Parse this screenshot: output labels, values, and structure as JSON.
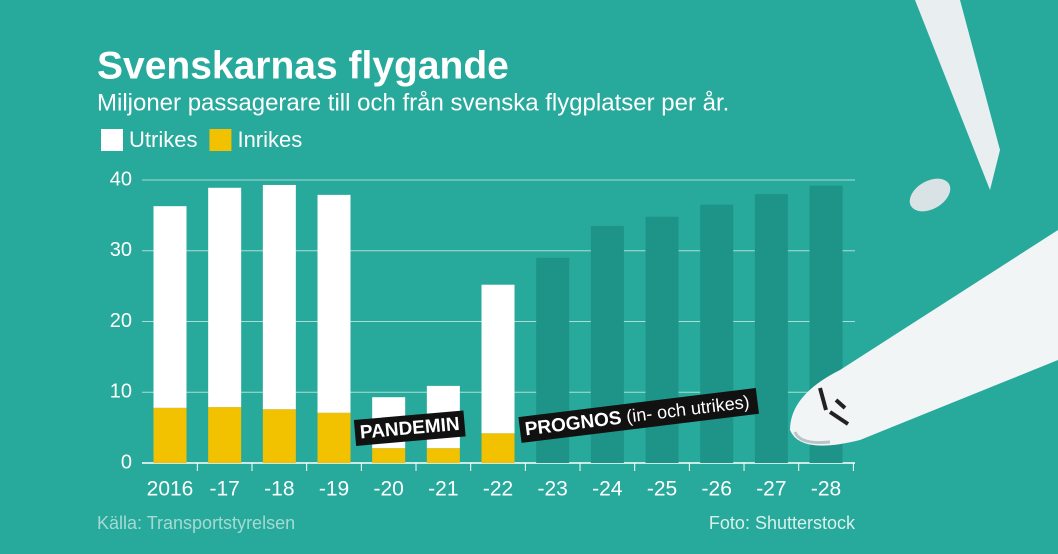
{
  "chart_data": {
    "type": "bar",
    "title": "Svenskarnas flygande",
    "subtitle": "Miljoner passagerare till och från svenska flygplatser per år.",
    "categories": [
      "2016",
      "-17",
      "-18",
      "-19",
      "-20",
      "-21",
      "-22",
      "-23",
      "-24",
      "-25",
      "-26",
      "-27",
      "-28"
    ],
    "series": [
      {
        "name": "Utrikes",
        "color": "#ffffff",
        "values": [
          28.5,
          31.0,
          31.7,
          30.8,
          7.2,
          8.8,
          21.0,
          null,
          null,
          null,
          null,
          null,
          null
        ]
      },
      {
        "name": "Inrikes",
        "color": "#f2c200",
        "values": [
          7.8,
          7.9,
          7.6,
          7.1,
          2.1,
          2.1,
          4.2,
          null,
          null,
          null,
          null,
          null,
          null
        ]
      }
    ],
    "forecast": {
      "color": "#1d9487",
      "values": [
        null,
        null,
        null,
        null,
        null,
        null,
        null,
        29.0,
        33.5,
        34.8,
        36.5,
        38.0,
        39.2
      ]
    },
    "ylim": [
      0,
      40
    ],
    "yticks": [
      0,
      10,
      20,
      30,
      40
    ],
    "grid": true,
    "annotations": [
      "PANDEMIN",
      "PROGNOS",
      "(in- och utrikes)"
    ],
    "source": "Källa: Transportstyrelsen",
    "credit": "Foto: Shutterstock"
  }
}
